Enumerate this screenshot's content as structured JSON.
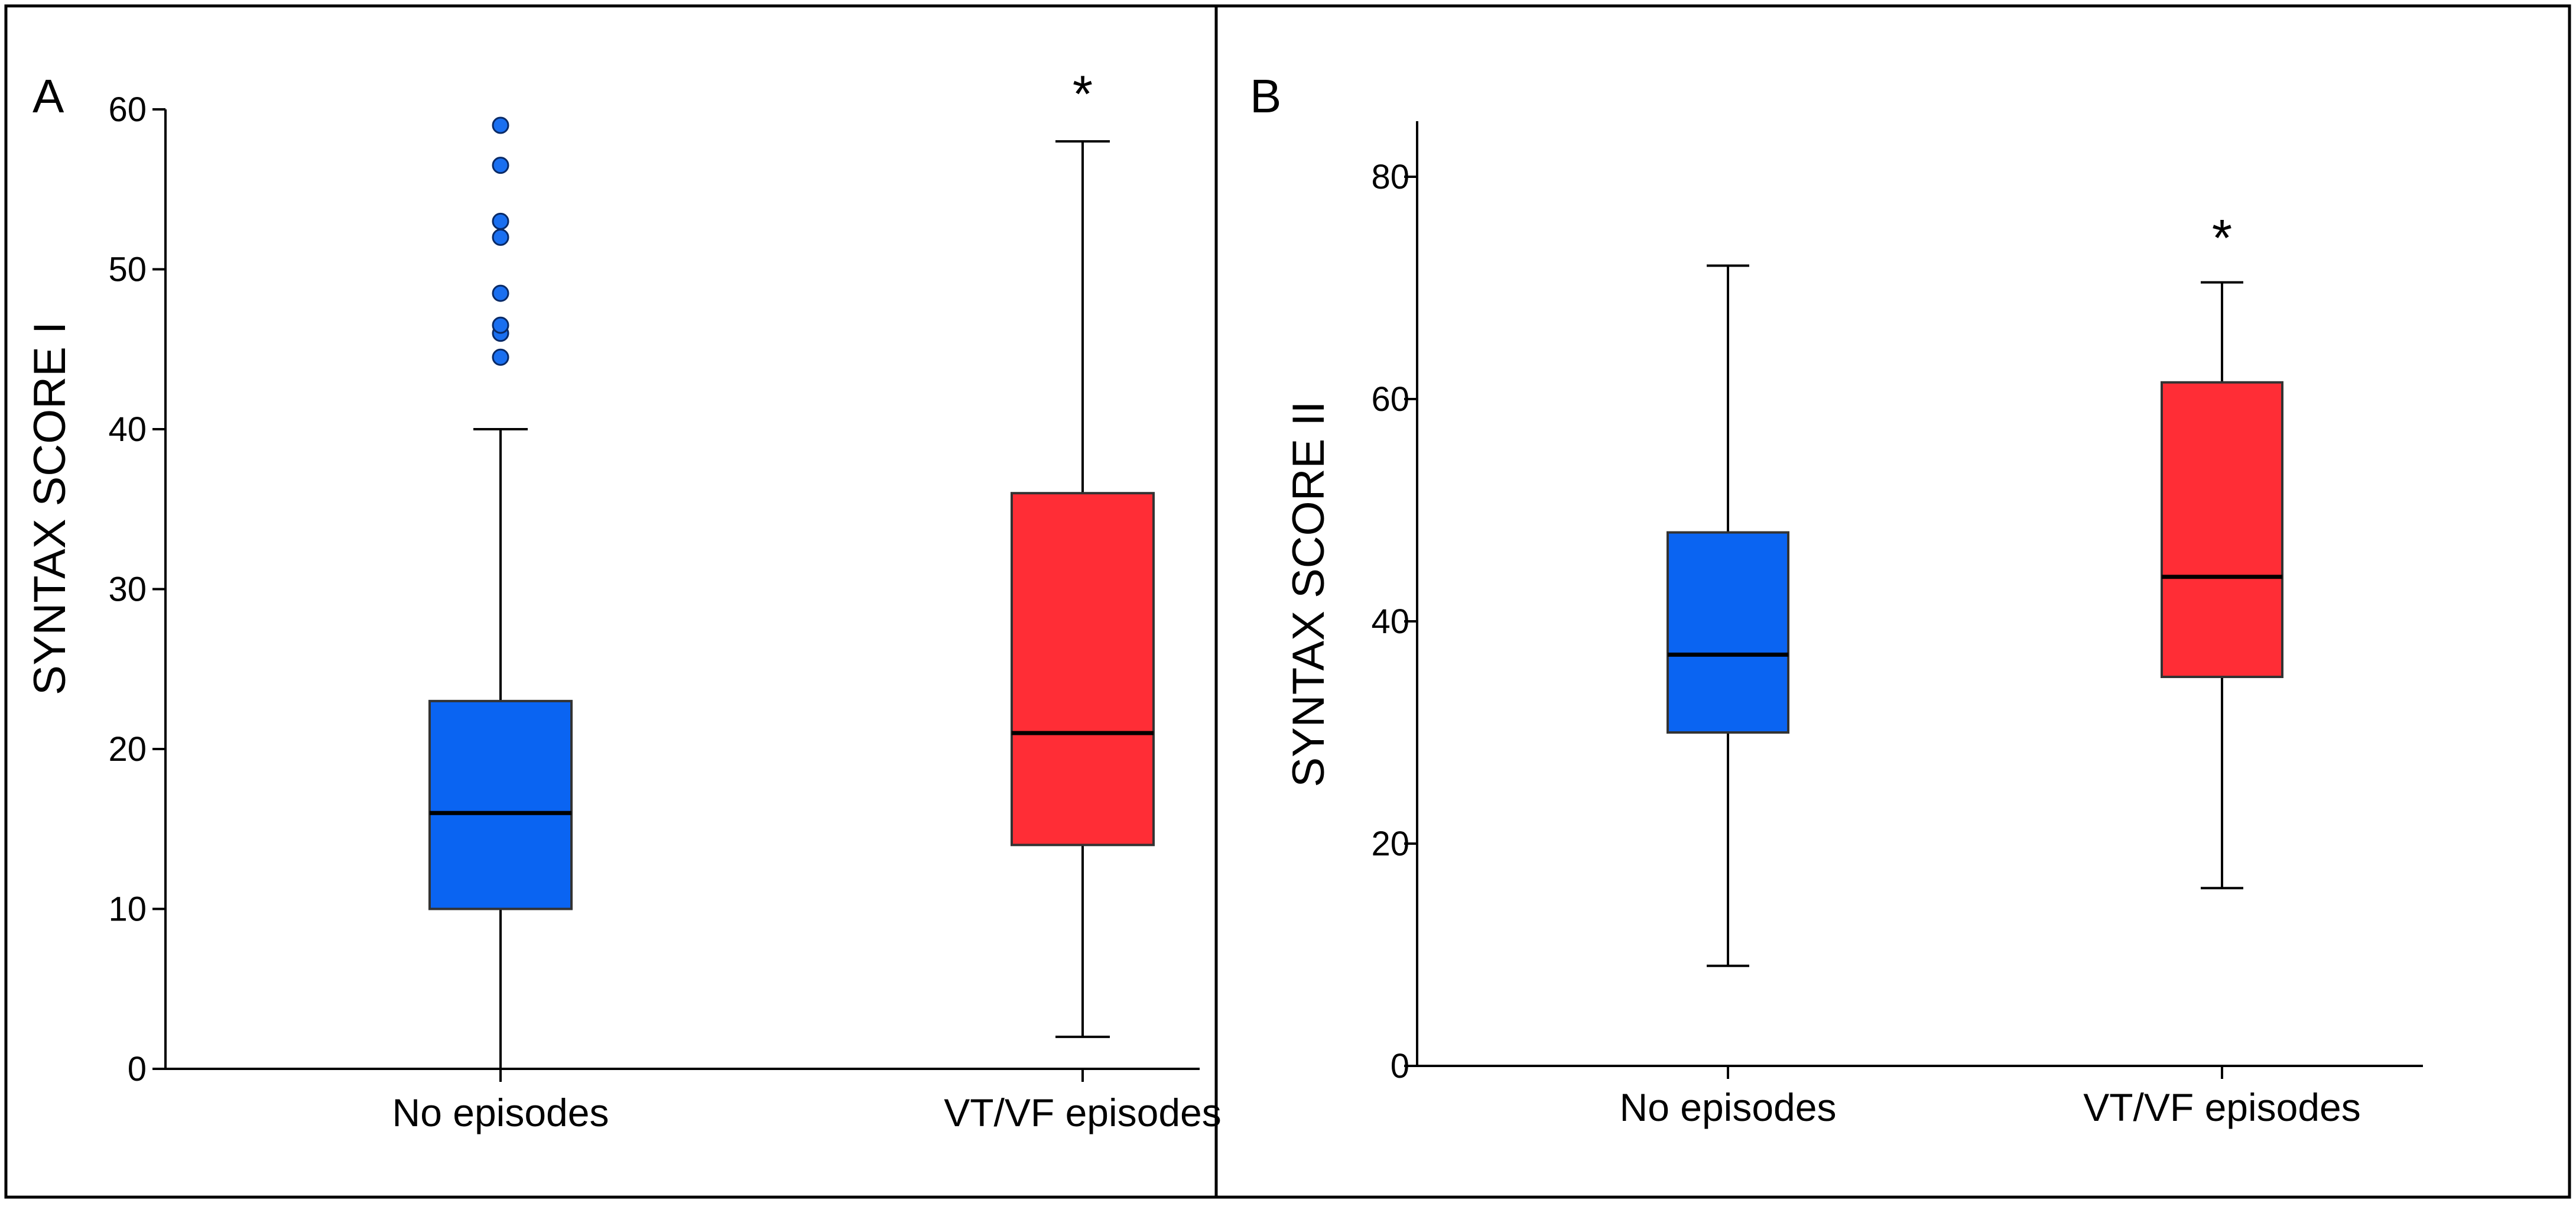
{
  "colors": {
    "no_episodes": "#0a64f2",
    "vt_vf_episodes": "#ff2d36",
    "outlier": "#1a6ff0",
    "stroke": "#000000"
  },
  "chart_data": [
    {
      "panel_label": "A",
      "type": "boxplot",
      "ylabel": "SYNTAX SCORE I",
      "ylim": [
        0,
        60
      ],
      "yticks": [
        0,
        10,
        20,
        30,
        40,
        50,
        60
      ],
      "categories": [
        "No episodes",
        "VT/VF episodes"
      ],
      "series": [
        {
          "category": "No episodes",
          "color": "#0a64f2",
          "whisker_low": 0,
          "q1": 10,
          "median": 16,
          "q3": 23,
          "whisker_high": 40,
          "outliers": [
            44.5,
            46,
            46.5,
            48.5,
            52,
            53,
            56.5,
            59
          ],
          "significance": ""
        },
        {
          "category": "VT/VF episodes",
          "color": "#ff2d36",
          "whisker_low": 2,
          "q1": 14,
          "median": 21,
          "q3": 36,
          "whisker_high": 58,
          "outliers": [],
          "significance": "*"
        }
      ]
    },
    {
      "panel_label": "B",
      "type": "boxplot",
      "ylabel": "SYNTAX SCORE II",
      "ylim": [
        0,
        85
      ],
      "yticks": [
        0,
        20,
        40,
        60,
        80
      ],
      "categories": [
        "No episodes",
        "VT/VF episodes"
      ],
      "series": [
        {
          "category": "No episodes",
          "color": "#0a64f2",
          "whisker_low": 9,
          "q1": 30,
          "median": 37,
          "q3": 48,
          "whisker_high": 72,
          "outliers": [],
          "significance": ""
        },
        {
          "category": "VT/VF episodes",
          "color": "#ff2d36",
          "whisker_low": 16,
          "q1": 35,
          "median": 44,
          "q3": 61.5,
          "whisker_high": 70.5,
          "outliers": [],
          "significance": "*"
        }
      ]
    }
  ]
}
